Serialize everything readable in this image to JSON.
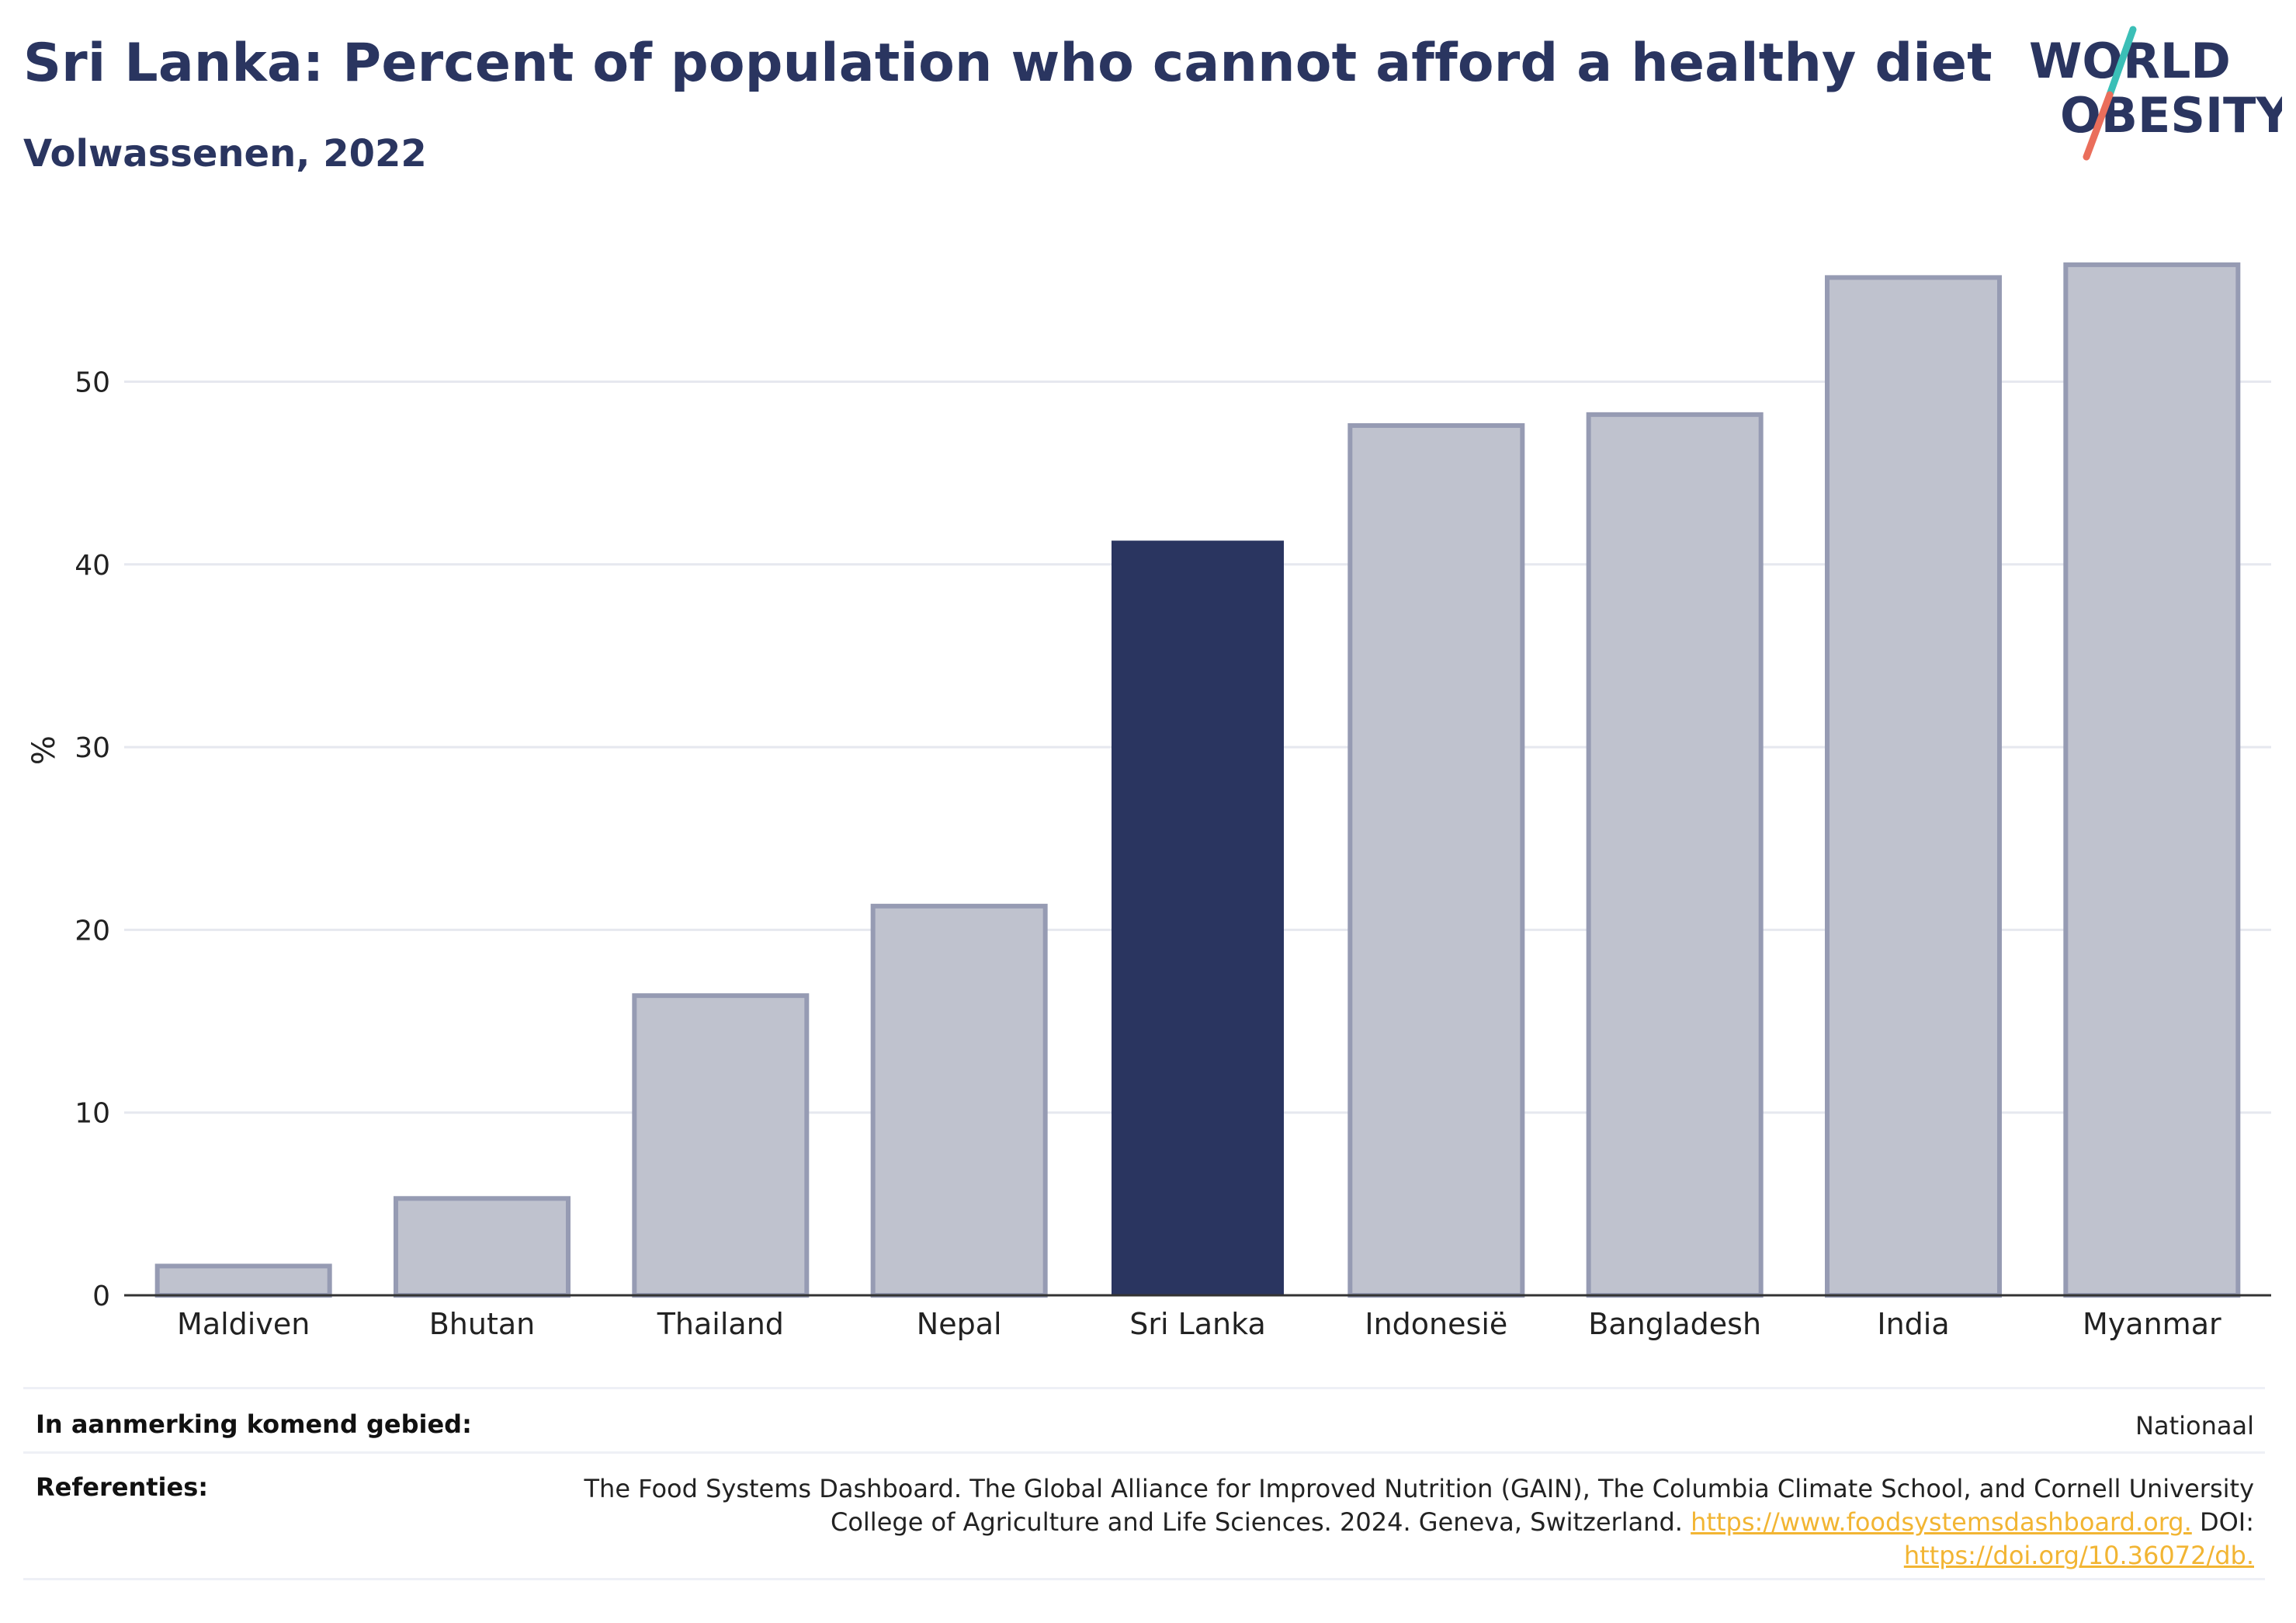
{
  "header": {
    "title": "Sri Lanka: Percent of population who cannot afford a healthy diet",
    "subtitle": "Volwassenen, 2022"
  },
  "logo": {
    "line1": "WORLD",
    "line2": "OBESITY",
    "icon": "world-obesity-logo"
  },
  "colors": {
    "highlight": "#2a3560",
    "bar": "#bfc2ce",
    "bar_border": "#969bb3",
    "text": "#2a3560"
  },
  "chart_data": {
    "type": "bar",
    "title": "Sri Lanka: Percent of population who cannot afford a healthy diet",
    "subtitle": "Volwassenen, 2022",
    "xlabel": "",
    "ylabel": "%",
    "categories": [
      "Maldiven",
      "Bhutan",
      "Thailand",
      "Nepal",
      "Sri Lanka",
      "Indonesië",
      "Bangladesh",
      "India",
      "Myanmar"
    ],
    "values": [
      1.6,
      5.3,
      16.4,
      21.3,
      41.3,
      47.6,
      48.2,
      55.7,
      56.4
    ],
    "highlight": "Sri Lanka",
    "yticks": [
      0,
      10,
      20,
      30,
      40,
      50
    ],
    "ylim": [
      0,
      58
    ],
    "grid": true
  },
  "info": {
    "area_label": "In aanmerking komend gebied:",
    "area_value": "Nationaal",
    "references_label": "Referenties:",
    "references_text_1": "The Food Systems Dashboard. The Global Alliance for Improved Nutrition (GAIN), The Columbia Climate School, and Cornell University College of Agriculture and Life Sciences. 2024. Geneva, Switzerland. ",
    "references_link_1": "https://www.foodsystemsdashboard.org.",
    "references_text_2": " DOI: ",
    "references_link_2": "https://doi.org/10.36072/db."
  }
}
